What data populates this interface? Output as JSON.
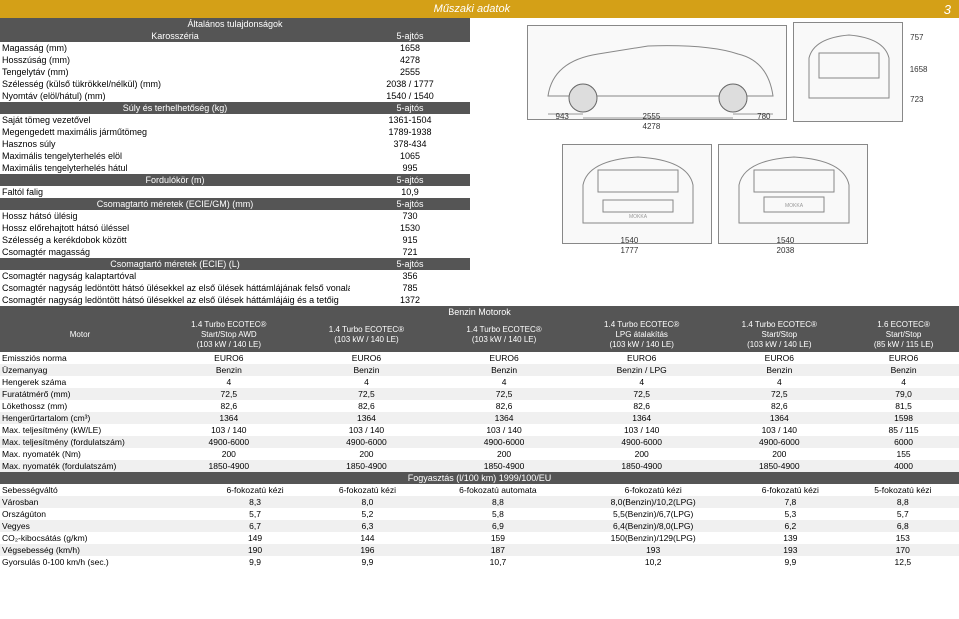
{
  "header": {
    "title": "Műszaki adatok",
    "page_num": "3"
  },
  "general": {
    "title": "Általános tulajdonságok",
    "body_header": "Karosszéria",
    "five_door": "5-ajtós",
    "rows": [
      {
        "label": "Magasság (mm)",
        "val": "1658"
      },
      {
        "label": "Hosszúság (mm)",
        "val": "4278"
      },
      {
        "label": "Tengelytáv (mm)",
        "val": "2555"
      },
      {
        "label": "Szélesség (külső tükrökkel/nélkül) (mm)",
        "val": "2038 / 1777"
      },
      {
        "label": "Nyomtáv (elöl/hátul) (mm)",
        "val": "1540 / 1540"
      }
    ],
    "weight_header": "Súly és terhelhetőség (kg)",
    "weight_rows": [
      {
        "label": "Saját tömeg vezetővel",
        "val": "1361-1504"
      },
      {
        "label": "Megengedett maximális járműtömeg",
        "val": "1789-1938"
      },
      {
        "label": "Hasznos súly",
        "val": "378-434"
      },
      {
        "label": "Maximális tengelyterhelés elöl",
        "val": "1065"
      },
      {
        "label": "Maximális tengelyterhelés hátul",
        "val": "995"
      }
    ],
    "turn_header": "Fordulókör (m)",
    "turn_rows": [
      {
        "label": "Faltól falig",
        "val": "10,9"
      }
    ],
    "trunk_dim_header": "Csomagtartó méretek (ECIE/GM) (mm)",
    "trunk_dim_rows": [
      {
        "label": "Hossz hátsó ülésig",
        "val": "730"
      },
      {
        "label": "Hossz előrehajtott hátsó üléssel",
        "val": "1530"
      },
      {
        "label": "Szélesség a kerékdobok között",
        "val": "915"
      },
      {
        "label": "Csomagtér magasság",
        "val": "721"
      }
    ],
    "trunk_vol_header": "Csomagtartó méretek (ECIE) (L)",
    "trunk_vol_rows": [
      {
        "label": "Csomagtér nagyság kalaptartóval",
        "val": "356"
      },
      {
        "label": "Csomagtér nagyság ledöntött hátsó ülésekkel az első ülések háttámlájának felső vonaláig",
        "val": "785"
      },
      {
        "label": "Csomagtér nagyság ledöntött hátsó ülésekkel az első ülések háttámlájáig és a tetőig",
        "val": "1372"
      }
    ]
  },
  "dimensions": {
    "side": {
      "front_overhang": "943",
      "wheelbase": "2555",
      "rear_overhang": "780",
      "length": "4278",
      "roof": "757",
      "height": "1658",
      "ground": "723"
    },
    "front": {
      "track": "1540",
      "width": "1777"
    },
    "rear": {
      "track": "1540",
      "width": "2038"
    }
  },
  "engine": {
    "section_title": "Benzin Motorok",
    "motor_label": "Motor",
    "headers": [
      "1.4 Turbo ECOTEC®\nStart/Stop AWD\n(103 kW / 140 LE)",
      "1.4 Turbo ECOTEC®\n(103 kW / 140 LE)",
      "1.4 Turbo ECOTEC®\n(103 kW / 140 LE)",
      "1.4 Turbo ECOTEC®\nLPG átalakítás\n(103 kW / 140 LE)",
      "1.4 Turbo ECOTEC®\nStart/Stop\n(103 kW / 140 LE)",
      "1.6 ECOTEC®\nStart/Stop\n(85 kW / 115 LE)"
    ],
    "rows": [
      {
        "label": "Emissziós norma",
        "vals": [
          "EURO6",
          "EURO6",
          "EURO6",
          "EURO6",
          "EURO6",
          "EURO6"
        ]
      },
      {
        "label": "Üzemanyag",
        "vals": [
          "Benzin",
          "Benzin",
          "Benzin",
          "Benzin / LPG",
          "Benzin",
          "Benzin"
        ],
        "alt": true
      },
      {
        "label": "Hengerek száma",
        "vals": [
          "4",
          "4",
          "4",
          "4",
          "4",
          "4"
        ]
      },
      {
        "label": "Furatátmérő (mm)",
        "vals": [
          "72,5",
          "72,5",
          "72,5",
          "72,5",
          "72,5",
          "79,0"
        ],
        "alt": true
      },
      {
        "label": "Lökethossz (mm)",
        "vals": [
          "82,6",
          "82,6",
          "82,6",
          "82,6",
          "82,6",
          "81,5"
        ]
      },
      {
        "label": "Hengerűrtartalom (cm³)",
        "vals": [
          "1364",
          "1364",
          "1364",
          "1364",
          "1364",
          "1598"
        ],
        "alt": true
      },
      {
        "label": "Max. teljesítmény (kW/LE)",
        "vals": [
          "103 / 140",
          "103 / 140",
          "103 / 140",
          "103 / 140",
          "103 / 140",
          "85 / 115"
        ]
      },
      {
        "label": "Max. teljesítmény (fordulatszám)",
        "vals": [
          "4900-6000",
          "4900-6000",
          "4900-6000",
          "4900-6000",
          "4900-6000",
          "6000"
        ],
        "alt": true
      },
      {
        "label": "Max. nyomaték (Nm)",
        "vals": [
          "200",
          "200",
          "200",
          "200",
          "200",
          "155"
        ]
      },
      {
        "label": "Max. nyomaték (fordulatszám)",
        "vals": [
          "1850-4900",
          "1850-4900",
          "1850-4900",
          "1850-4900",
          "1850-4900",
          "4000"
        ],
        "alt": true
      }
    ],
    "fuel_header": "Fogyasztás (l/100 km) 1999/100/EU",
    "fuel_rows": [
      {
        "label": "Sebességváltó",
        "vals": [
          "6-fokozatú kézi",
          "6-fokozatú kézi",
          "6-fokozatú automata",
          "6-fokozatú kézi",
          "6-fokozatú kézi",
          "5-fokozatú kézi"
        ]
      },
      {
        "label": "Városban",
        "vals": [
          "8,3",
          "8,0",
          "8,8",
          "8,0(Benzin)/10,2(LPG)",
          "7,8",
          "8,8"
        ],
        "alt": true
      },
      {
        "label": "Országúton",
        "vals": [
          "5,7",
          "5,2",
          "5,8",
          "5,5(Benzin)/6,7(LPG)",
          "5,3",
          "5,7"
        ]
      },
      {
        "label": "Vegyes",
        "vals": [
          "6,7",
          "6,3",
          "6,9",
          "6,4(Benzin)/8,0(LPG)",
          "6,2",
          "6,8"
        ],
        "alt": true
      },
      {
        "label": "CO₂-kibocsátás (g/km)",
        "vals": [
          "149",
          "144",
          "159",
          "150(Benzin)/129(LPG)",
          "139",
          "153"
        ]
      },
      {
        "label": "Végsebesség (km/h)",
        "vals": [
          "190",
          "196",
          "187",
          "193",
          "193",
          "170"
        ],
        "alt": true
      },
      {
        "label": "Gyorsulás 0-100 km/h (sec.)",
        "vals": [
          "9,9",
          "9,9",
          "10,7",
          "10,2",
          "9,9",
          "12,5"
        ]
      }
    ]
  }
}
